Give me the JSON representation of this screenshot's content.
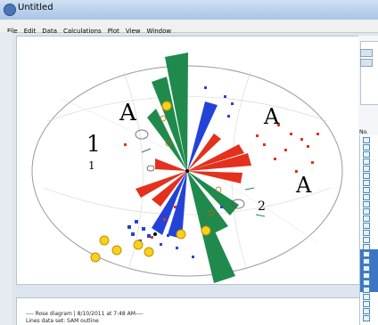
{
  "window": {
    "title": "Untitled"
  },
  "menu": [
    "File",
    "Edit",
    "Data",
    "Calculations",
    "Plot",
    "View",
    "Window"
  ],
  "overlay_labels": [
    "A",
    "A",
    "A",
    "1",
    "1",
    "2"
  ],
  "side_panel": {
    "list_header": "No."
  },
  "info": {
    "line1": "---- Rose diagram | 8/10/2011 at 7:48 AM----",
    "line2": "Lines data set: SAM outline"
  },
  "colors": {
    "green": "#1f8a4c",
    "red": "#e3311d",
    "blue": "#2343d8",
    "yellow": "#f5d21b",
    "selection": "#3b75c4"
  }
}
